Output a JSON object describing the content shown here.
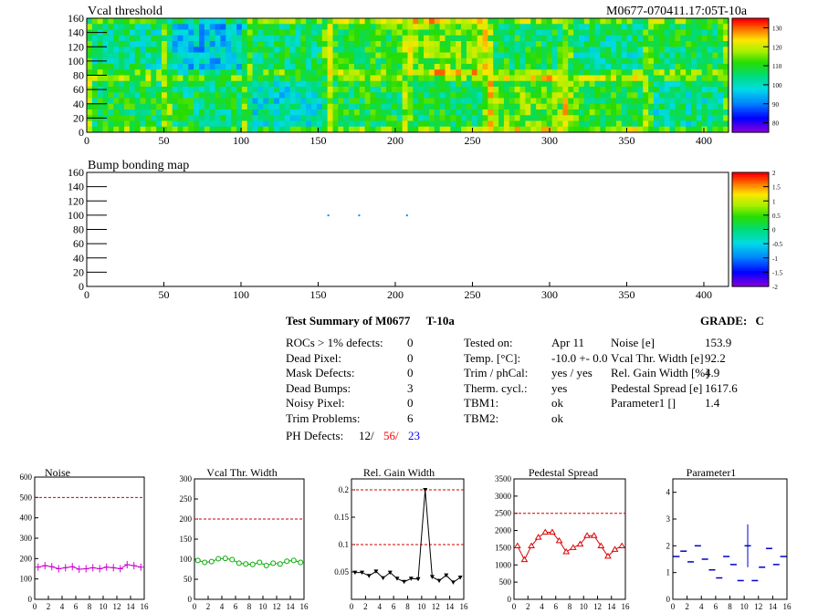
{
  "top_map": {
    "title": "Vcal threshold",
    "label_right": "M0677-070411.17:05T-10a",
    "y_ticks": [
      "0",
      "20",
      "40",
      "60",
      "80",
      "100",
      "120",
      "140",
      "160"
    ],
    "x_ticks": [
      "0",
      "50",
      "100",
      "150",
      "200",
      "250",
      "300",
      "350",
      "400"
    ],
    "palette_ticks": [
      "80",
      "90",
      "100",
      "110",
      "120",
      "130"
    ]
  },
  "bump_map": {
    "title": "Bump bonding map",
    "y_ticks": [
      "0",
      "20",
      "40",
      "60",
      "80",
      "100",
      "120",
      "140",
      "160"
    ],
    "x_ticks": [
      "0",
      "50",
      "100",
      "150",
      "200",
      "250",
      "300",
      "350",
      "400"
    ],
    "palette_ticks": [
      "-2",
      "-1.5",
      "-1",
      "-0.5",
      "0",
      "0.5",
      "1",
      "1.5",
      "2"
    ]
  },
  "summary": {
    "title": "Test Summary of M0677",
    "temp_label": "T-10a",
    "grade_label": "GRADE:",
    "grade_value": "C",
    "left_rows": [
      {
        "label": "ROCs > 1% defects:",
        "value": "0"
      },
      {
        "label": "Dead Pixel:",
        "value": "0"
      },
      {
        "label": "Mask Defects:",
        "value": "0"
      },
      {
        "label": "Dead Bumps:",
        "value": "3"
      },
      {
        "label": "Noisy Pixel:",
        "value": "0"
      },
      {
        "label": "Trim Problems:",
        "value": "6"
      }
    ],
    "ph_label": "PH Defects:",
    "ph_values": [
      "12/",
      "56/",
      "23"
    ],
    "ph_colors": [
      "#000000",
      "#ff0000",
      "#0000ff"
    ],
    "middle_rows": [
      {
        "label": "Tested on:",
        "value": "Apr 11"
      },
      {
        "label": "Temp. [°C]:",
        "value": "-10.0 +- 0.0"
      },
      {
        "label": "Trim / phCal:",
        "value": "yes / yes"
      },
      {
        "label": "Therm. cycl.:",
        "value": "yes"
      },
      {
        "label": "TBM1:",
        "value": "ok"
      },
      {
        "label": "TBM2:",
        "value": "ok"
      }
    ],
    "right_rows": [
      {
        "label": "Noise [e]",
        "value": "153.9"
      },
      {
        "label": "Vcal Thr. Width [e]",
        "value": "92.2"
      },
      {
        "label": "Rel. Gain Width [%]",
        "value": "4.9"
      },
      {
        "label": "Pedestal Spread [e]",
        "value": "1617.6"
      },
      {
        "label": "Parameter1 []",
        "value": "1.4"
      }
    ]
  },
  "chart_data": [
    {
      "type": "heatmap",
      "title": "Vcal threshold",
      "xlim": [
        0,
        416
      ],
      "ylim": [
        0,
        160
      ],
      "zlim": [
        75,
        135
      ],
      "x_ticks": [
        0,
        50,
        100,
        150,
        200,
        250,
        300,
        350,
        400
      ],
      "y_ticks": [
        0,
        20,
        40,
        60,
        80,
        100,
        120,
        140,
        160
      ],
      "z_ticks": [
        80,
        90,
        100,
        110,
        120,
        130
      ],
      "roc_grid_cols": 8,
      "roc_grid_rows": 2,
      "roc_mean_top": [
        104,
        96,
        106,
        110,
        115,
        108,
        104,
        107
      ],
      "roc_mean_bottom": [
        108,
        106,
        100,
        108,
        107,
        114,
        110,
        103
      ]
    },
    {
      "type": "heatmap",
      "title": "Bump bonding map",
      "xlim": [
        0,
        416
      ],
      "ylim": [
        0,
        160
      ],
      "zlim": [
        -2,
        2
      ],
      "x_ticks": [
        0,
        50,
        100,
        150,
        200,
        250,
        300,
        350,
        400
      ],
      "y_ticks": [
        0,
        20,
        40,
        60,
        80,
        100,
        120,
        140,
        160
      ],
      "z_ticks": [
        -2,
        -1.5,
        -1,
        -0.5,
        0,
        0.5,
        1,
        1.5,
        2
      ],
      "points": [
        [
          156,
          101
        ],
        [
          176,
          101
        ],
        [
          207,
          101
        ]
      ]
    },
    {
      "type": "line",
      "title": "Noise",
      "color": "#cc00cc",
      "marker": "cross",
      "x": [
        0,
        1,
        2,
        3,
        4,
        5,
        6,
        7,
        8,
        9,
        10,
        11,
        12,
        13,
        14,
        15
      ],
      "values": [
        158,
        165,
        160,
        150,
        155,
        160,
        148,
        150,
        155,
        150,
        158,
        155,
        150,
        170,
        165,
        158
      ],
      "errors": [
        18,
        18,
        18,
        18,
        18,
        18,
        18,
        18,
        18,
        18,
        18,
        18,
        18,
        18,
        18,
        18
      ],
      "xlim": [
        0,
        16
      ],
      "ylim": [
        0,
        600
      ],
      "x_ticks": [
        0,
        2,
        4,
        6,
        8,
        10,
        12,
        14,
        16
      ],
      "y_ticks": [
        0,
        100,
        200,
        300,
        400,
        500,
        600
      ],
      "ref_lines": [
        500
      ]
    },
    {
      "type": "line",
      "title": "Vcal Thr. Width",
      "color": "#00aa00",
      "marker": "circle",
      "x": [
        0,
        1,
        2,
        3,
        4,
        5,
        6,
        7,
        8,
        9,
        10,
        11,
        12,
        13,
        14,
        15
      ],
      "values": [
        97,
        92,
        94,
        101,
        102,
        99,
        90,
        88,
        87,
        92,
        84,
        90,
        88,
        95,
        97,
        92
      ],
      "xlim": [
        0,
        16
      ],
      "ylim": [
        0,
        300
      ],
      "x_ticks": [
        0,
        2,
        4,
        6,
        8,
        10,
        12,
        14,
        16
      ],
      "y_ticks": [
        0,
        50,
        100,
        150,
        200,
        250,
        300
      ],
      "ref_lines": [
        200
      ]
    },
    {
      "type": "line",
      "title": "Rel. Gain Width",
      "color": "#000000",
      "marker": "triangle-down",
      "x": [
        0,
        1,
        2,
        3,
        4,
        5,
        6,
        7,
        8,
        9,
        10,
        11,
        12,
        13,
        14,
        15
      ],
      "values": [
        0.049,
        0.049,
        0.043,
        0.051,
        0.039,
        0.049,
        0.038,
        0.032,
        0.038,
        0.037,
        0.2,
        0.041,
        0.034,
        0.044,
        0.031,
        0.04
      ],
      "xlim": [
        0,
        16
      ],
      "ylim": [
        0,
        0.22
      ],
      "x_ticks": [
        0,
        2,
        4,
        6,
        8,
        10,
        12,
        14,
        16
      ],
      "y_ticks": [
        0.05,
        0.1,
        0.15,
        0.2
      ],
      "y_tick_labels": [
        "0.05",
        "0.1",
        "0.15",
        "0.2"
      ],
      "ref_lines": [
        0.1,
        0.2
      ]
    },
    {
      "type": "line",
      "title": "Pedestal Spread",
      "color": "#dd0000",
      "marker": "triangle-up",
      "x": [
        0,
        1,
        2,
        3,
        4,
        5,
        6,
        7,
        8,
        9,
        10,
        11,
        12,
        13,
        14,
        15
      ],
      "values": [
        1550,
        1150,
        1550,
        1800,
        1950,
        1950,
        1700,
        1380,
        1500,
        1600,
        1850,
        1850,
        1550,
        1250,
        1450,
        1550
      ],
      "xlim": [
        0,
        16
      ],
      "ylim": [
        0,
        3500
      ],
      "x_ticks": [
        0,
        2,
        4,
        6,
        8,
        10,
        12,
        14,
        16
      ],
      "y_ticks": [
        0,
        500,
        1000,
        1500,
        2000,
        2500,
        3000,
        3500
      ],
      "ref_lines": [
        2500
      ]
    },
    {
      "type": "scatter",
      "title": "Parameter1",
      "color": "#0000cc",
      "marker": "hbar",
      "x": [
        0,
        1,
        2,
        3,
        4,
        5,
        6,
        7,
        8,
        9,
        10,
        11,
        12,
        13,
        14,
        15
      ],
      "values": [
        1.6,
        1.8,
        1.4,
        2.0,
        1.5,
        1.1,
        0.8,
        1.6,
        1.3,
        0.7,
        2.0,
        0.7,
        1.2,
        1.9,
        1.3,
        1.6
      ],
      "errors": [
        0,
        0,
        0,
        0,
        0,
        0,
        0,
        0,
        0,
        0,
        0.8,
        0,
        0,
        0,
        0,
        0
      ],
      "xlim": [
        0,
        16
      ],
      "ylim": [
        0,
        4.5
      ],
      "x_ticks": [
        0,
        2,
        4,
        6,
        8,
        10,
        12,
        14,
        16
      ],
      "y_ticks": [
        0,
        1,
        2,
        3,
        4
      ]
    }
  ]
}
